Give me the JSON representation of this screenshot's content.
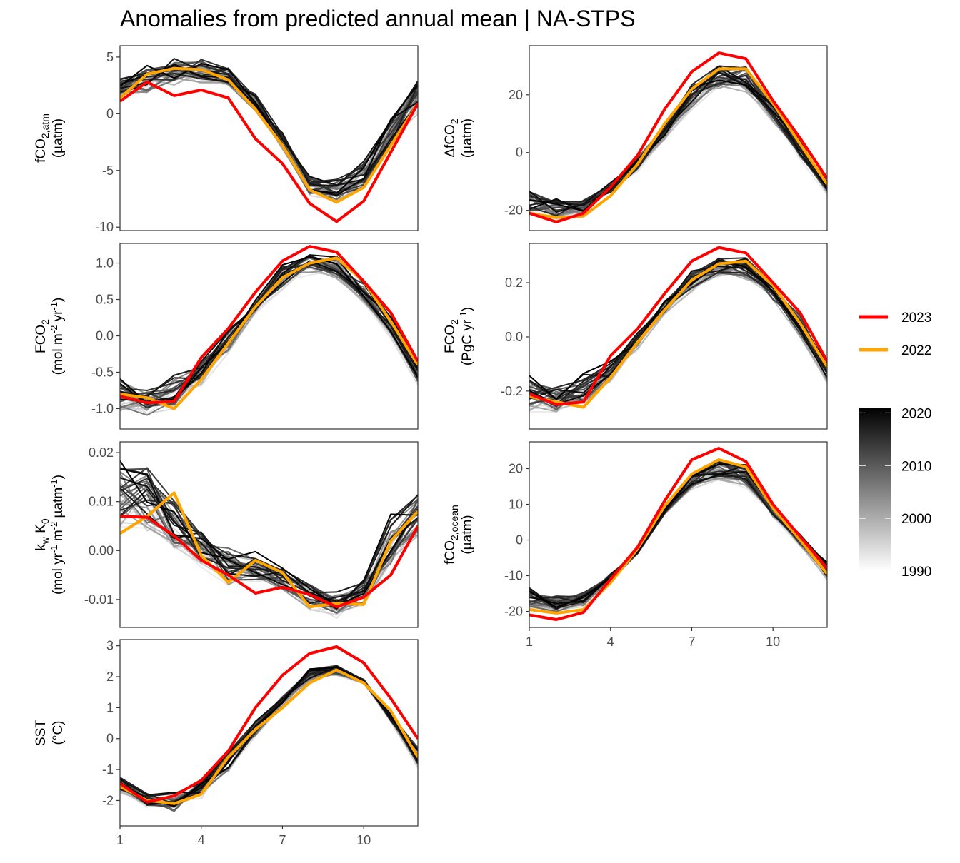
{
  "title": "Anomalies from predicted annual mean | NA-STPS",
  "chart_data": {
    "type": "line",
    "x": [
      1,
      2,
      3,
      4,
      5,
      6,
      7,
      8,
      9,
      10,
      11,
      12
    ],
    "xlim": [
      1,
      12
    ],
    "x_ticks": [
      "1",
      "4",
      "7",
      "10"
    ],
    "colors": {
      "2023": "#ff0000",
      "2022": "#ffa500",
      "gradient_start": "#ffffff",
      "gradient_end": "#000000"
    },
    "legend": {
      "highlight": [
        {
          "label": "2023",
          "color": "#ff0000"
        },
        {
          "label": "2022",
          "color": "#ffa500"
        }
      ],
      "gradient_labels": [
        "2020",
        "2010",
        "2000",
        "1990"
      ],
      "gradient_range": [
        1990,
        2021
      ]
    },
    "panels": [
      {
        "id": "fco2atm",
        "ylabel_lines": [
          [
            [
              "fCO",
              ""
            ],
            [
              "2,atm",
              "sub"
            ]
          ],
          [
            [
              "(µatm)",
              ""
            ]
          ]
        ],
        "ylim": [
          -10.3,
          6
        ],
        "y_ticks": [
          "5",
          "0",
          "-5",
          "-10"
        ],
        "y_tick_values": [
          5,
          0,
          -5,
          -10
        ],
        "series_2023": [
          1.1,
          2.8,
          1.6,
          2.1,
          1.4,
          -2.2,
          -4.4,
          -7.9,
          -9.5,
          -7.7,
          -3.4,
          0.9
        ],
        "series_2022": [
          1.4,
          3.5,
          4.0,
          3.9,
          3.0,
          0.4,
          -2.8,
          -6.7,
          -7.8,
          -6.5,
          -2.8,
          0.9
        ],
        "spread_min": [
          1.2,
          1.5,
          2.3,
          2.5,
          2.1,
          -0.2,
          -3.3,
          -7.6,
          -8.0,
          -7.2,
          -3.5,
          -0.3
        ],
        "spread_max": [
          3.2,
          4.5,
          5.0,
          5.0,
          4.5,
          1.9,
          -1.5,
          -5.2,
          -5.6,
          -4.0,
          0.0,
          3.6
        ]
      },
      {
        "id": "dfco2",
        "ylabel_lines": [
          [
            [
              "ΔfCO",
              ""
            ],
            [
              "2",
              "sub"
            ]
          ],
          [
            [
              "(µatm)",
              ""
            ]
          ]
        ],
        "ylim": [
          -27,
          37
        ],
        "y_ticks": [
          "20",
          "0",
          "-20"
        ],
        "y_tick_values": [
          20,
          0,
          -20
        ],
        "series_2023": [
          -21,
          -24,
          -21,
          -12,
          -1,
          15,
          28,
          34.5,
          32.5,
          18,
          5,
          -9
        ],
        "series_2022": [
          -21,
          -22.5,
          -22,
          -15,
          -4,
          10,
          22,
          29,
          29,
          17,
          3,
          -11
        ],
        "spread_min": [
          -23,
          -24,
          -22,
          -15,
          -7,
          4,
          14,
          21,
          20,
          10,
          -3,
          -15
        ],
        "spread_max": [
          -12,
          -15,
          -16,
          -10,
          -1,
          10,
          25,
          32,
          31,
          18,
          5,
          -9
        ]
      },
      {
        "id": "fco2_mol",
        "ylabel_lines": [
          [
            [
              "FCO",
              ""
            ],
            [
              "2",
              "sub"
            ]
          ],
          [
            [
              "(mol m",
              ""
            ],
            [
              "-2",
              "sup"
            ],
            [
              " yr",
              ""
            ],
            [
              "-1",
              "sup"
            ],
            [
              ")",
              ""
            ]
          ]
        ],
        "ylim": [
          -1.28,
          1.27
        ],
        "y_ticks": [
          "1.0",
          "0.5",
          "0.0",
          "-0.5",
          "-1.0"
        ],
        "y_tick_values": [
          1,
          0.5,
          0,
          -0.5,
          -1
        ],
        "series_2023": [
          -0.83,
          -0.92,
          -0.9,
          -0.3,
          0.1,
          0.6,
          1.03,
          1.23,
          1.15,
          0.75,
          0.32,
          -0.35
        ],
        "series_2022": [
          -0.8,
          -0.85,
          -1.0,
          -0.6,
          -0.1,
          0.4,
          0.8,
          1.0,
          1.07,
          0.75,
          0.2,
          -0.4
        ],
        "spread_min": [
          -1.1,
          -1.17,
          -1.05,
          -0.7,
          -0.25,
          0.3,
          0.6,
          0.82,
          0.75,
          0.42,
          -0.05,
          -0.7
        ],
        "spread_max": [
          -0.5,
          -0.7,
          -0.5,
          -0.3,
          0.1,
          0.5,
          1.0,
          1.15,
          1.12,
          0.8,
          0.3,
          -0.3
        ]
      },
      {
        "id": "fco2_pgc",
        "ylabel_lines": [
          [
            [
              "FCO",
              ""
            ],
            [
              "2",
              "sub"
            ]
          ],
          [
            [
              "(PgC yr",
              ""
            ],
            [
              "-1",
              "sup"
            ],
            [
              ")",
              ""
            ]
          ]
        ],
        "ylim": [
          -0.34,
          0.345
        ],
        "y_ticks": [
          "0.2",
          "0.0",
          "-0.2"
        ],
        "y_tick_values": [
          0.2,
          0,
          -0.2
        ],
        "series_2023": [
          -0.21,
          -0.25,
          -0.24,
          -0.07,
          0.03,
          0.16,
          0.28,
          0.33,
          0.31,
          0.2,
          0.09,
          -0.09
        ],
        "series_2022": [
          -0.22,
          -0.24,
          -0.26,
          -0.15,
          -0.02,
          0.1,
          0.21,
          0.27,
          0.28,
          0.19,
          0.05,
          -0.11
        ],
        "spread_min": [
          -0.29,
          -0.29,
          -0.27,
          -0.17,
          -0.06,
          0.08,
          0.16,
          0.22,
          0.2,
          0.12,
          -0.01,
          -0.18
        ],
        "spread_max": [
          -0.13,
          -0.17,
          -0.13,
          -0.08,
          0.02,
          0.14,
          0.25,
          0.3,
          0.3,
          0.21,
          0.09,
          -0.07
        ]
      },
      {
        "id": "kwk0",
        "ylabel_lines": [
          [
            [
              "k",
              ""
            ],
            [
              "w",
              "sub"
            ],
            [
              " K",
              ""
            ],
            [
              "0",
              "sub"
            ]
          ],
          [
            [
              "(mol yr",
              ""
            ],
            [
              "-1",
              "sup"
            ],
            [
              " m",
              ""
            ],
            [
              "-2",
              "sup"
            ],
            [
              " µatm",
              ""
            ],
            [
              "-1",
              "sup"
            ],
            [
              ")",
              ""
            ]
          ]
        ],
        "ylim": [
          -0.0157,
          0.0222
        ],
        "y_ticks": [
          "0.02",
          "0.01",
          "0.00",
          "-0.01"
        ],
        "y_tick_values": [
          0.02,
          0.01,
          0,
          -0.01
        ],
        "series_2023": [
          0.007,
          0.0068,
          0.003,
          -0.002,
          -0.005,
          -0.0087,
          -0.0075,
          -0.009,
          -0.0115,
          -0.0095,
          -0.005,
          0.005
        ],
        "series_2022": [
          0.0035,
          0.007,
          0.0118,
          -0.001,
          -0.0065,
          -0.002,
          -0.0045,
          -0.0115,
          -0.0108,
          -0.011,
          0.002,
          0.008
        ],
        "spread_min": [
          0.003,
          0.003,
          -0.001,
          -0.004,
          -0.0085,
          -0.008,
          -0.009,
          -0.0125,
          -0.0142,
          -0.012,
          -0.006,
          0.002
        ],
        "spread_max": [
          0.019,
          0.019,
          0.012,
          0.005,
          0.003,
          0.0,
          -0.003,
          -0.006,
          -0.008,
          -0.005,
          0.008,
          0.0135
        ]
      },
      {
        "id": "fco2ocean",
        "ylabel_lines": [
          [
            [
              "fCO",
              ""
            ],
            [
              "2,ocean",
              "sub"
            ]
          ],
          [
            [
              "(µatm)",
              ""
            ]
          ]
        ],
        "ylim": [
          -24.5,
          27.5
        ],
        "y_ticks": [
          "20",
          "10",
          "0",
          "-10",
          "-20"
        ],
        "y_tick_values": [
          20,
          10,
          0,
          -10,
          -20
        ],
        "series_2023": [
          -21,
          -22.3,
          -20.3,
          -11,
          -2,
          11,
          22.5,
          25.7,
          22,
          10,
          1,
          -8
        ],
        "series_2022": [
          -19.5,
          -20.5,
          -19.5,
          -12,
          -2.5,
          9.5,
          18.5,
          22.5,
          20.5,
          9,
          0,
          -9.5
        ],
        "spread_min": [
          -20,
          -21,
          -19,
          -12,
          -4,
          7,
          14,
          16,
          14,
          6,
          -2,
          -12
        ],
        "spread_max": [
          -13,
          -15,
          -14,
          -9,
          -3,
          9,
          19,
          23.5,
          21.5,
          10,
          2,
          -6
        ]
      },
      {
        "id": "sst",
        "ylabel_lines": [
          [
            [
              "SST",
              ""
            ]
          ],
          [
            [
              "(°C)",
              ""
            ]
          ]
        ],
        "ylim": [
          -2.82,
          3.2
        ],
        "y_ticks": [
          "3",
          "2",
          "1",
          "0",
          "-1",
          "-2"
        ],
        "y_tick_values": [
          3,
          2,
          1,
          0,
          -1,
          -2
        ],
        "series_2023": [
          -1.45,
          -2.05,
          -1.85,
          -1.35,
          -0.4,
          1.0,
          2.05,
          2.75,
          2.97,
          2.45,
          1.3,
          0.0
        ],
        "series_2022": [
          -1.55,
          -2.0,
          -2.1,
          -1.8,
          -0.6,
          0.3,
          1.0,
          1.8,
          2.22,
          1.8,
          0.9,
          -0.6
        ],
        "spread_min": [
          -1.8,
          -2.35,
          -2.5,
          -2.0,
          -1.2,
          0.0,
          1.0,
          1.8,
          2.0,
          1.75,
          0.5,
          -1.0
        ],
        "spread_max": [
          -1.2,
          -1.7,
          -1.7,
          -1.2,
          -0.3,
          0.6,
          1.4,
          2.3,
          2.45,
          1.95,
          0.8,
          -0.2
        ]
      }
    ]
  }
}
